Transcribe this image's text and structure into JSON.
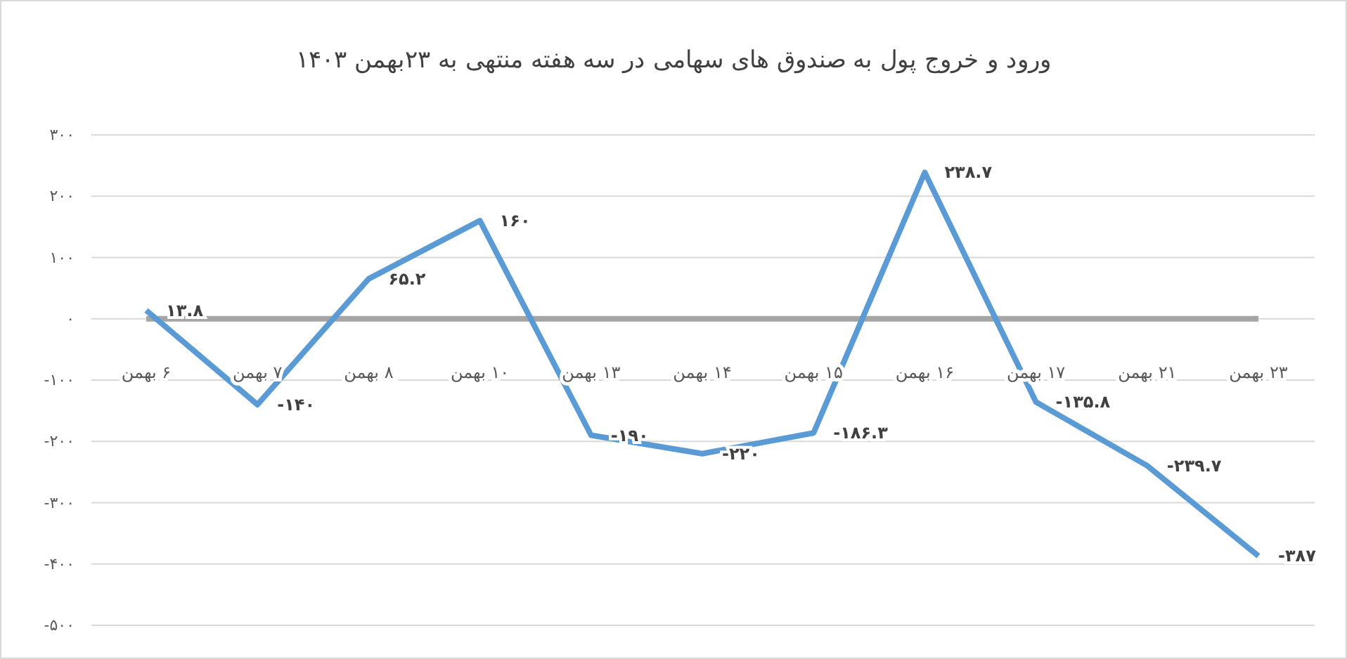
{
  "chart_data": {
    "type": "line",
    "title": "ورود و خروج پول به صندوق های سهامی در سه هفته منتهی به ۲۳بهمن ۱۴۰۳",
    "categories": [
      "۶ بهمن",
      "۷ بهمن",
      "۸ بهمن",
      "۱۰ بهمن",
      "۱۳ بهمن",
      "۱۴ بهمن",
      "۱۵ بهمن",
      "۱۶ بهمن",
      "۱۷ بهمن",
      "۲۱ بهمن",
      "۲۳ بهمن"
    ],
    "series": [
      {
        "color": "#5b9bd5",
        "values": [
          13.8,
          -140,
          65.2,
          160,
          -190,
          -220,
          -186.3,
          238.7,
          -135.8,
          -239.7,
          -387
        ],
        "value_labels": [
          "۱۳.۸",
          "-۱۴۰",
          "۶۵.۲",
          "۱۶۰",
          "-۱۹۰",
          "-۲۲۰",
          "-۱۸۶.۳",
          "۲۳۸.۷",
          "-۱۳۵.۸",
          "-۲۳۹.۷",
          "-۳۸۷"
        ]
      }
    ],
    "ylim": [
      -500,
      300
    ],
    "yticks": [
      {
        "value": -500,
        "label": "-۵۰۰"
      },
      {
        "value": -400,
        "label": "-۴۰۰"
      },
      {
        "value": -300,
        "label": "-۳۰۰"
      },
      {
        "value": -200,
        "label": "-۲۰۰"
      },
      {
        "value": -100,
        "label": "-۱۰۰"
      },
      {
        "value": 0,
        "label": "۰"
      },
      {
        "value": 100,
        "label": "۱۰۰"
      },
      {
        "value": 200,
        "label": "۲۰۰"
      },
      {
        "value": 300,
        "label": "۳۰۰"
      }
    ],
    "grid": "y",
    "marker": "none",
    "line_style": "solid"
  }
}
